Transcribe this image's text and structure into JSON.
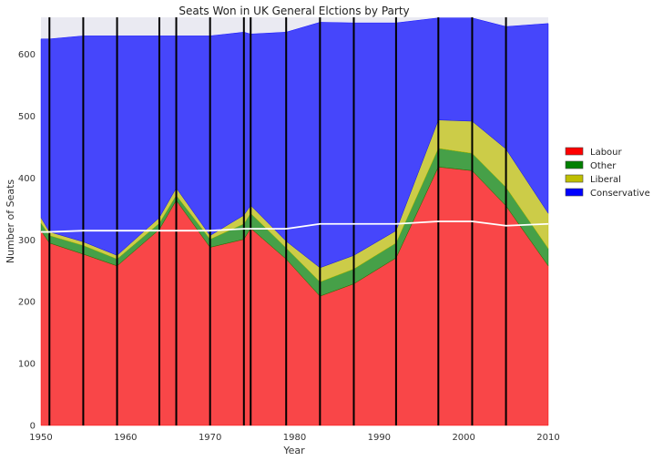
{
  "chart_data": {
    "type": "area",
    "stacked": true,
    "title": "Seats Won in UK General Elctions by Party",
    "xlabel": "Year",
    "ylabel": "Number of Seats",
    "xlim": [
      1950,
      2010
    ],
    "ylim": [
      0,
      660
    ],
    "xticks": [
      1950,
      1960,
      1970,
      1980,
      1990,
      2000,
      2010
    ],
    "yticks": [
      0,
      100,
      200,
      300,
      400,
      500,
      600
    ],
    "legend_position": "right",
    "x": [
      1950,
      1951,
      1955,
      1959,
      1964,
      1966,
      1970,
      1974,
      1974.8,
      1979,
      1983,
      1987,
      1992,
      1997,
      2001,
      2005,
      2010
    ],
    "series": [
      {
        "name": "Labour",
        "color": "#ff0000",
        "values": [
          315,
          295,
          277,
          258,
          317,
          364,
          288,
          301,
          319,
          269,
          209,
          229,
          271,
          418,
          412,
          355,
          258
        ]
      },
      {
        "name": "Other",
        "color": "#008000",
        "values": [
          12,
          12,
          14,
          11,
          10,
          8,
          13,
          25,
          24,
          18,
          23,
          24,
          24,
          30,
          28,
          30,
          28
        ]
      },
      {
        "name": "Liberal",
        "color": "#bfbf00",
        "values": [
          9,
          6,
          6,
          6,
          9,
          12,
          6,
          14,
          13,
          11,
          23,
          22,
          20,
          46,
          52,
          62,
          57
        ]
      },
      {
        "name": "Conservative",
        "color": "#0000ff",
        "values": [
          289,
          312,
          333,
          355,
          294,
          246,
          323,
          296,
          277,
          338,
          397,
          376,
          336,
          165,
          167,
          198,
          307
        ]
      }
    ],
    "majority_line": {
      "color": "#ffffff",
      "x": [
        1950,
        1951,
        1955,
        1959,
        1964,
        1966,
        1970,
        1974,
        1974.8,
        1979,
        1983,
        1987,
        1992,
        1997,
        2001,
        2005,
        2010
      ],
      "values": [
        313,
        313,
        315,
        315,
        315,
        315,
        315,
        318,
        318,
        318,
        326,
        326,
        326,
        330,
        330,
        323,
        326
      ]
    },
    "election_lines": [
      1951,
      1955,
      1959,
      1964,
      1966,
      1970,
      1974,
      1974.8,
      1979,
      1983,
      1987,
      1992,
      1997,
      2001,
      2005
    ],
    "background_color": "#eaeaf2"
  }
}
